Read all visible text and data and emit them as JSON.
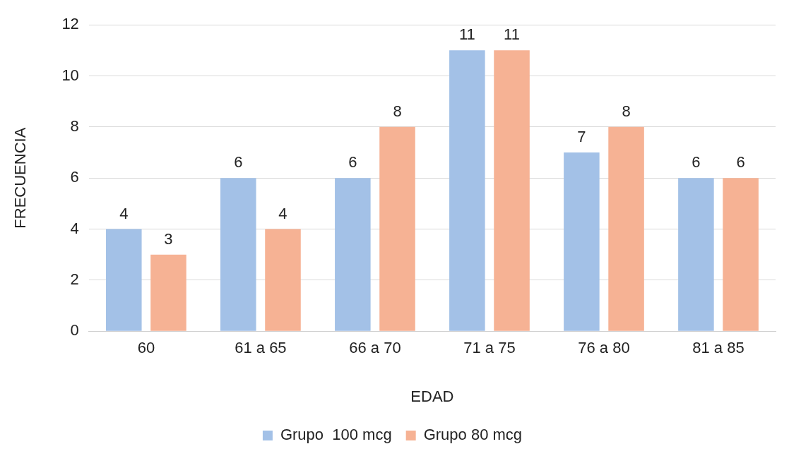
{
  "chart_data": {
    "type": "bar",
    "xlabel": "EDAD",
    "ylabel": "FRECUENCIA",
    "categories": [
      "60",
      "61 a 65",
      "66 a 70",
      "71 a 75",
      "76 a 80",
      "81 a 85"
    ],
    "series": [
      {
        "name": "Grupo  100 mcg",
        "color": "#a3c1e7",
        "values": [
          4,
          6,
          6,
          11,
          7,
          6
        ]
      },
      {
        "name": "Grupo 80 mcg",
        "color": "#f6b294",
        "values": [
          3,
          4,
          8,
          11,
          8,
          6
        ]
      }
    ],
    "ylim": [
      0,
      12
    ],
    "yticks": [
      0,
      2,
      4,
      6,
      8,
      10,
      12
    ],
    "grid": "y",
    "legend": "bottom",
    "data_labels": true
  }
}
